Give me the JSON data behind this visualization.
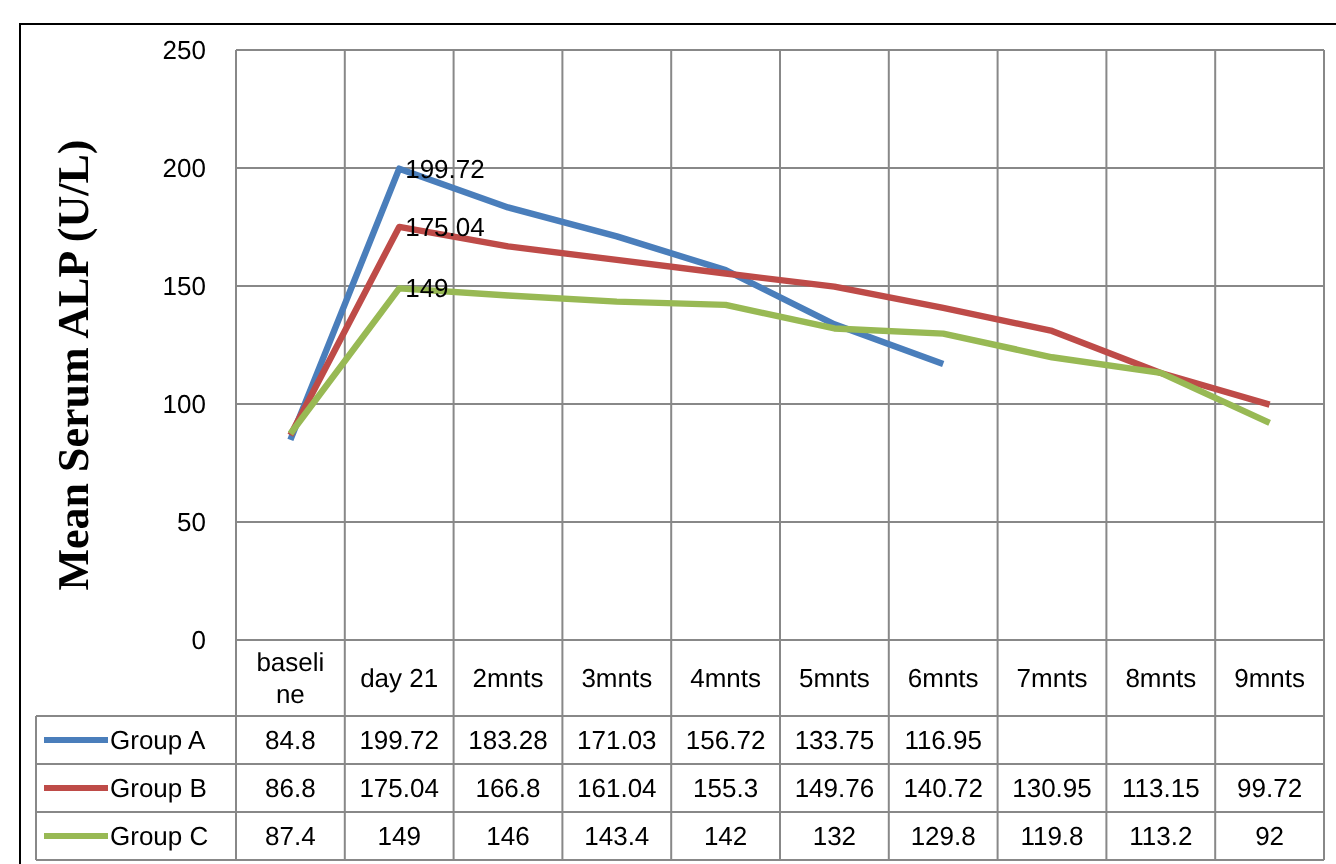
{
  "chart_data": {
    "type": "line",
    "ylabel": "Mean Serum ALP (U/L)",
    "categories": [
      "baseline",
      "day 21",
      "2mnts",
      "3mnts",
      "4mnts",
      "5mnts",
      "6mnts",
      "7mnts",
      "8mnts",
      "9mnts"
    ],
    "series": [
      {
        "name": "Group A",
        "color": "#4a7ebb",
        "values": [
          84.8,
          199.72,
          183.28,
          171.03,
          156.72,
          133.75,
          116.95,
          null,
          null,
          null
        ]
      },
      {
        "name": "Group B",
        "color": "#be4b48",
        "values": [
          86.8,
          175.04,
          166.8,
          161.04,
          155.3,
          149.76,
          140.72,
          130.95,
          113.15,
          99.72
        ]
      },
      {
        "name": "Group C",
        "color": "#98b954",
        "values": [
          87.4,
          149,
          146,
          143.4,
          142,
          132,
          129.8,
          119.8,
          113.2,
          92
        ]
      }
    ],
    "ylim": [
      0,
      250
    ],
    "yticks": [
      0,
      50,
      100,
      150,
      200,
      250
    ],
    "grid": true,
    "legend": "bottom",
    "data_labels": true,
    "marker": "none",
    "annotations": [
      {
        "text": "199.72",
        "x": "day 21",
        "y": 199.72
      },
      {
        "text": "175.04",
        "x": "day 21",
        "y": 175.04
      },
      {
        "text": "149",
        "x": "day 21",
        "y": 149
      }
    ]
  }
}
